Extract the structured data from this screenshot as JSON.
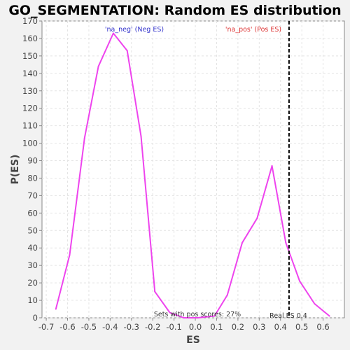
{
  "chart_data": {
    "type": "line",
    "title": "GO_SEGMENTATION: Random ES distribution",
    "xlabel": "ES",
    "ylabel": "P(ES)",
    "xlim": [
      -0.72,
      0.7
    ],
    "ylim": [
      0,
      170
    ],
    "xticks": [
      "-0.7",
      "-0.6",
      "-0.5",
      "-0.4",
      "-0.3",
      "-0.2",
      "-0.1",
      "0.0",
      "0.1",
      "0.2",
      "0.3",
      "0.4",
      "0.5",
      "0.6"
    ],
    "xtick_values": [
      -0.7,
      -0.6,
      -0.5,
      -0.4,
      -0.3,
      -0.2,
      -0.1,
      0.0,
      0.1,
      0.2,
      0.3,
      0.4,
      0.5,
      0.6
    ],
    "yticks": [
      "0",
      "10",
      "20",
      "30",
      "40",
      "50",
      "60",
      "70",
      "80",
      "90",
      "100",
      "110",
      "120",
      "130",
      "140",
      "150",
      "160",
      "170"
    ],
    "ytick_values": [
      0,
      10,
      20,
      30,
      40,
      50,
      60,
      70,
      80,
      90,
      100,
      110,
      120,
      130,
      140,
      150,
      160,
      170
    ],
    "grid": true,
    "series": [
      {
        "color": "#ee44ee",
        "x": [
          -0.655,
          -0.59,
          -0.52,
          -0.455,
          -0.385,
          -0.32,
          -0.255,
          -0.19,
          -0.12,
          -0.055,
          0.01,
          0.09,
          0.15,
          0.22,
          0.29,
          0.36,
          0.425,
          0.49,
          0.56,
          0.63
        ],
        "y": [
          5,
          36,
          103,
          144,
          163,
          153,
          104,
          15,
          3,
          0,
          0,
          1,
          13,
          43,
          57,
          87,
          43,
          21,
          8,
          1
        ]
      }
    ],
    "real_es": {
      "x": 0.44,
      "label": "Real ES 0.4"
    },
    "annotations": {
      "neg_label": "'na_neg' (Neg ES)",
      "pos_label": "'na_pos' (Pos ES)",
      "footer": "Sets with pos scores: 27%"
    },
    "colors": {
      "line": "#ee44ee",
      "neg_text": "#3333cc",
      "pos_text": "#dd3333",
      "real_es_line": "#000000",
      "plot_bg": "#ffffff",
      "grid": "#e4e4e4"
    }
  }
}
